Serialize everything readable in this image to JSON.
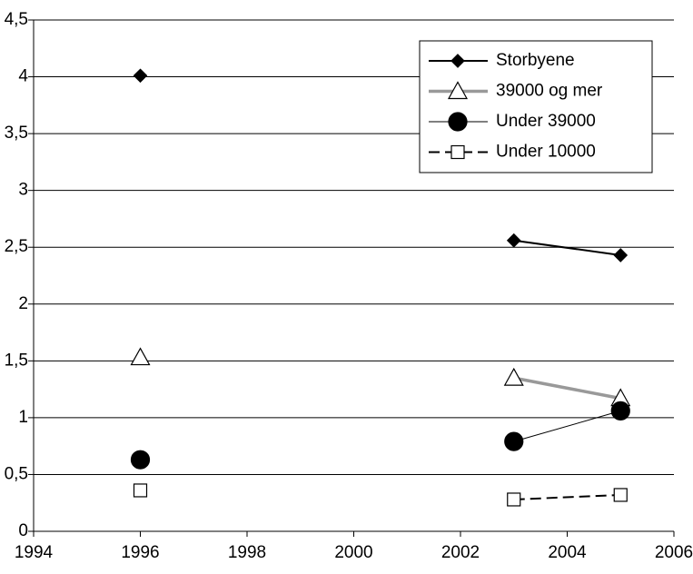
{
  "chart_data": {
    "type": "line",
    "x": [
      1996,
      null,
      2003,
      2005
    ],
    "series": [
      {
        "name": "Storbyene",
        "color": "#000000",
        "marker": "diamond",
        "line_width": 2,
        "dash": false,
        "values": [
          4.01,
          null,
          2.56,
          2.43
        ]
      },
      {
        "name": "39000 og mer",
        "color": "#999999",
        "marker": "triangle",
        "line_width": 3.5,
        "dash": false,
        "values": [
          1.53,
          null,
          1.35,
          1.17
        ]
      },
      {
        "name": "Under 39000",
        "color": "#000000",
        "marker": "circle",
        "line_width": 1,
        "dash": false,
        "values": [
          0.63,
          null,
          0.79,
          1.06
        ]
      },
      {
        "name": "Under 10000",
        "color": "#000000",
        "marker": "square",
        "line_width": 2,
        "dash": true,
        "values": [
          0.36,
          null,
          0.28,
          0.32
        ]
      }
    ],
    "xlim": [
      1994,
      2006
    ],
    "xticks": [
      1994,
      1996,
      1998,
      2000,
      2002,
      2004,
      2006
    ],
    "ylim": [
      0,
      4.5
    ],
    "yticks": [
      0,
      {
        "value": 0.5,
        "label": "0,5"
      },
      1,
      {
        "value": 1.5,
        "label": "1,5"
      },
      2,
      {
        "value": 2.5,
        "label": "2,5"
      },
      3,
      {
        "value": 3.5,
        "label": "3,5"
      },
      4,
      {
        "value": 4.5,
        "label": "4,5"
      }
    ],
    "grid": true,
    "legend": "top-right"
  }
}
